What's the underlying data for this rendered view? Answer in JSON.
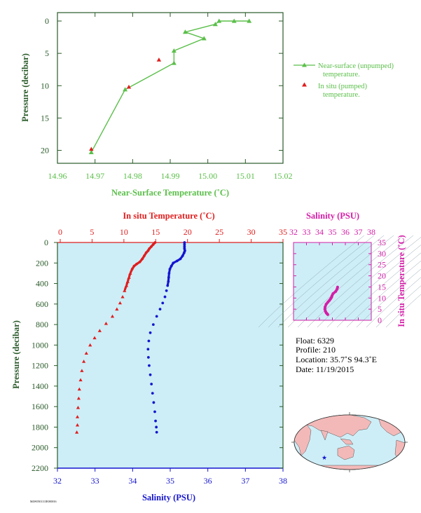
{
  "colors": {
    "green": "#5bbf4a",
    "red": "#e01e1e",
    "blue": "#1515d0",
    "magenta": "#d41fa7",
    "axis_dark_green": "#2a5a2a",
    "panel_bg": "#cdeef7",
    "land": "#f3b9b9"
  },
  "chart_data": [
    {
      "type": "line",
      "title": "",
      "xlabel": "Near-Surface Temperature (˚C)",
      "ylabel": "Pressure (decibar)",
      "xlim": [
        14.96,
        15.02
      ],
      "ylim": [
        0,
        22
      ],
      "y_inverted": true,
      "x_ticks": [
        "14.96",
        "14.97",
        "14.98",
        "14.99",
        "15.00",
        "15.01",
        "15.02"
      ],
      "y_ticks": [
        "0",
        "5",
        "10",
        "15",
        "20"
      ],
      "series": [
        {
          "name": "Near-surface (unpumped) temperature.",
          "marker": "triangle",
          "points": [
            {
              "x": 15.011,
              "y": 0.0
            },
            {
              "x": 15.007,
              "y": 0.0
            },
            {
              "x": 15.003,
              "y": 0.0
            },
            {
              "x": 15.002,
              "y": 0.5
            },
            {
              "x": 14.994,
              "y": 1.7
            },
            {
              "x": 14.999,
              "y": 2.7
            },
            {
              "x": 14.991,
              "y": 4.6
            },
            {
              "x": 14.991,
              "y": 6.5
            },
            {
              "x": 14.978,
              "y": 10.6
            },
            {
              "x": 14.969,
              "y": 20.3
            }
          ]
        },
        {
          "name": "In situ (pumped) temperature.",
          "marker": "triangle",
          "points": [
            {
              "x": 14.987,
              "y": 6.0
            },
            {
              "x": 14.979,
              "y": 10.2
            },
            {
              "x": 14.969,
              "y": 19.8
            }
          ]
        }
      ],
      "legend": {
        "entries": [
          {
            "label": "Near-surface (unpumped)",
            "label2": "temperature."
          },
          {
            "label": "In situ (pumped)",
            "label2": "temperature."
          }
        ]
      }
    },
    {
      "type": "scatter",
      "title": "",
      "top_xlabel": "In situ Temperature (˚C)",
      "bottom_xlabel": "Salinity (PSU)",
      "ylabel": "Pressure (decibar)",
      "temp_lim": [
        0,
        35
      ],
      "sal_lim": [
        32,
        38
      ],
      "ylim": [
        0,
        2200
      ],
      "y_inverted": true,
      "temp_ticks": [
        "0",
        "5",
        "10",
        "15",
        "20",
        "25",
        "30",
        "35"
      ],
      "sal_ticks": [
        "32",
        "33",
        "34",
        "35",
        "36",
        "37",
        "38"
      ],
      "y_ticks": [
        "0",
        "200",
        "400",
        "600",
        "800",
        "1000",
        "1200",
        "1400",
        "1600",
        "1800",
        "2000",
        "2200"
      ],
      "temperature_profile": [
        [
          14.9,
          0
        ],
        [
          14.6,
          20
        ],
        [
          14.3,
          40
        ],
        [
          14.0,
          60
        ],
        [
          13.8,
          80
        ],
        [
          13.5,
          100
        ],
        [
          13.2,
          130
        ],
        [
          12.9,
          160
        ],
        [
          12.5,
          190
        ],
        [
          12.0,
          210
        ],
        [
          11.6,
          230
        ],
        [
          11.3,
          260
        ],
        [
          11.0,
          300
        ],
        [
          10.8,
          340
        ],
        [
          10.6,
          380
        ],
        [
          10.4,
          420
        ],
        [
          10.1,
          470
        ],
        [
          9.8,
          530
        ],
        [
          9.4,
          590
        ],
        [
          8.9,
          650
        ],
        [
          8.2,
          720
        ],
        [
          7.2,
          790
        ],
        [
          6.2,
          860
        ],
        [
          5.4,
          930
        ],
        [
          4.7,
          1000
        ],
        [
          4.1,
          1080
        ],
        [
          3.7,
          1160
        ],
        [
          3.4,
          1250
        ],
        [
          3.2,
          1340
        ],
        [
          3.0,
          1430
        ],
        [
          2.9,
          1520
        ],
        [
          2.8,
          1610
        ],
        [
          2.7,
          1700
        ],
        [
          2.7,
          1780
        ],
        [
          2.6,
          1850
        ]
      ],
      "salinity_profile": [
        [
          35.38,
          0
        ],
        [
          35.38,
          20
        ],
        [
          35.38,
          40
        ],
        [
          35.38,
          60
        ],
        [
          35.39,
          80
        ],
        [
          35.37,
          100
        ],
        [
          35.33,
          130
        ],
        [
          35.27,
          160
        ],
        [
          35.18,
          180
        ],
        [
          35.08,
          200
        ],
        [
          35.03,
          230
        ],
        [
          34.99,
          260
        ],
        [
          34.97,
          300
        ],
        [
          34.96,
          340
        ],
        [
          34.95,
          380
        ],
        [
          34.93,
          420
        ],
        [
          34.9,
          470
        ],
        [
          34.86,
          530
        ],
        [
          34.8,
          590
        ],
        [
          34.73,
          650
        ],
        [
          34.64,
          720
        ],
        [
          34.55,
          800
        ],
        [
          34.47,
          880
        ],
        [
          34.43,
          960
        ],
        [
          34.41,
          1040
        ],
        [
          34.42,
          1120
        ],
        [
          34.44,
          1200
        ],
        [
          34.47,
          1290
        ],
        [
          34.5,
          1380
        ],
        [
          34.53,
          1470
        ],
        [
          34.56,
          1560
        ],
        [
          34.59,
          1650
        ],
        [
          34.61,
          1740
        ],
        [
          34.63,
          1800
        ],
        [
          34.64,
          1850
        ]
      ]
    },
    {
      "type": "scatter",
      "title": "",
      "top_xlabel": "Salinity (PSU)",
      "ylabel": "In situ Temperature (˚C)",
      "xlim": [
        32,
        38
      ],
      "ylim": [
        0,
        35
      ],
      "x_ticks": [
        "32",
        "33",
        "34",
        "35",
        "36",
        "37",
        "38"
      ],
      "y_ticks": [
        "0",
        "5",
        "10",
        "15",
        "20",
        "25",
        "30",
        "35"
      ],
      "points": [
        [
          35.4,
          14.9
        ],
        [
          35.36,
          14.0
        ],
        [
          35.26,
          13.0
        ],
        [
          35.05,
          12.0
        ],
        [
          34.97,
          11.0
        ],
        [
          34.94,
          10.4
        ],
        [
          34.88,
          9.8
        ],
        [
          34.78,
          9.0
        ],
        [
          34.66,
          8.2
        ],
        [
          34.52,
          7.2
        ],
        [
          34.44,
          6.0
        ],
        [
          34.42,
          5.0
        ],
        [
          34.46,
          4.1
        ],
        [
          34.52,
          3.4
        ],
        [
          34.58,
          3.0
        ],
        [
          34.64,
          2.6
        ]
      ]
    }
  ],
  "info": {
    "float": "Float:  6329",
    "profile": "Profile:  210",
    "location": "Location:  35.7˚S  94.3˚E",
    "date": "Date:  11/19/2015"
  },
  "footer_code": "M4W0501113E000016"
}
